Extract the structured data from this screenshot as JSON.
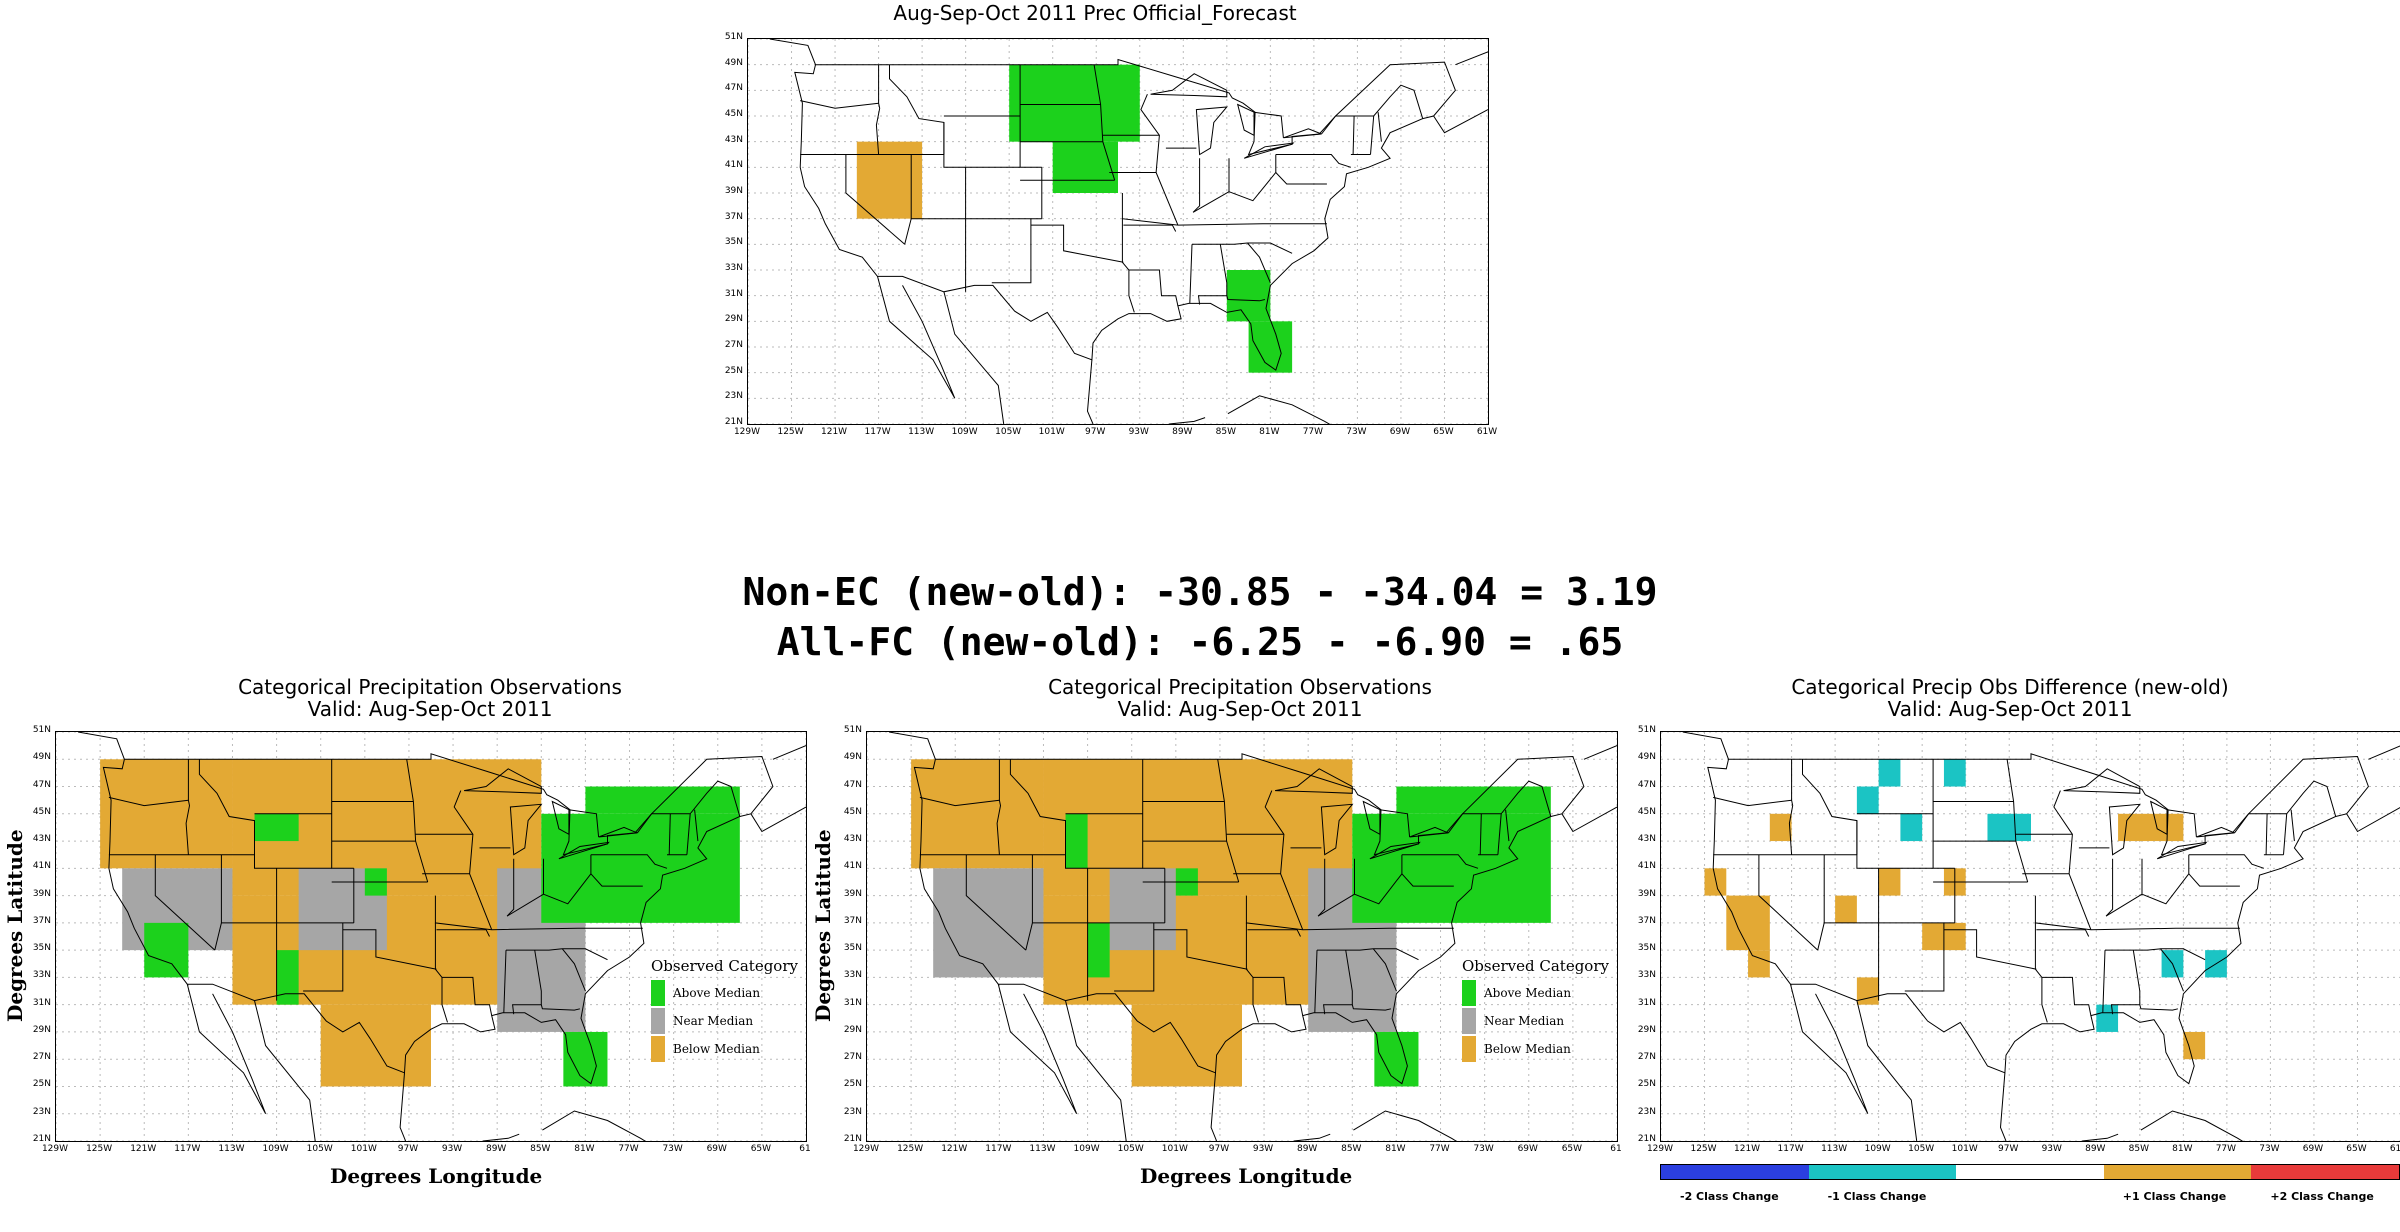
{
  "top_map": {
    "title": "Aug-Sep-Oct 2011 Prec Official_Forecast",
    "cells": [
      {
        "lon0": -119,
        "lat0": 37,
        "lon1": -113,
        "lat1": 43,
        "cat": "below"
      },
      {
        "lon0": -105,
        "lat0": 43,
        "lon1": -93,
        "lat1": 49,
        "cat": "above"
      },
      {
        "lon0": -101,
        "lat0": 39,
        "lon1": -95,
        "lat1": 43,
        "cat": "above"
      },
      {
        "lon0": -85,
        "lat0": 29,
        "lon1": -81,
        "lat1": 33,
        "cat": "above"
      },
      {
        "lon0": -83,
        "lat0": 25,
        "lon1": -79,
        "lat1": 29,
        "cat": "above"
      }
    ]
  },
  "stats": {
    "line1": "Non-EC (new-old): -30.85 - -34.04 = 3.19",
    "line2": "All-FC (new-old): -6.25 - -6.90 = .65"
  },
  "obs_map_1": {
    "title_line1": "Categorical Precipitation Observations",
    "title_line2": "Valid: Aug-Sep-Oct 2011",
    "cells": [
      {
        "lon0": -125,
        "lat0": 41,
        "lon1": -113,
        "lat1": 49,
        "cat": "below"
      },
      {
        "lon0": -123,
        "lat0": 35,
        "lon1": -113,
        "lat1": 41,
        "cat": "near"
      },
      {
        "lon0": -121,
        "lat0": 33,
        "lon1": -117,
        "lat1": 37,
        "cat": "above"
      },
      {
        "lon0": -113,
        "lat0": 31,
        "lon1": -83,
        "lat1": 39,
        "cat": "below"
      },
      {
        "lon0": -113,
        "lat0": 39,
        "lon1": -85,
        "lat1": 49,
        "cat": "below"
      },
      {
        "lon0": -107,
        "lat0": 35,
        "lon1": -99,
        "lat1": 41,
        "cat": "near"
      },
      {
        "lon0": -105,
        "lat0": 25,
        "lon1": -95,
        "lat1": 31,
        "cat": "below"
      },
      {
        "lon0": -89,
        "lat0": 29,
        "lon1": -81,
        "lat1": 41,
        "cat": "near"
      },
      {
        "lon0": -85,
        "lat0": 37,
        "lon1": -67,
        "lat1": 45,
        "cat": "above"
      },
      {
        "lon0": -81,
        "lat0": 45,
        "lon1": -67,
        "lat1": 47,
        "cat": "above"
      },
      {
        "lon0": -83,
        "lat0": 25,
        "lon1": -79,
        "lat1": 29,
        "cat": "above"
      },
      {
        "lon0": -111,
        "lat0": 43,
        "lon1": -107,
        "lat1": 45,
        "cat": "above"
      },
      {
        "lon0": -109,
        "lat0": 31,
        "lon1": -107,
        "lat1": 35,
        "cat": "above"
      },
      {
        "lon0": -101,
        "lat0": 39,
        "lon1": -99,
        "lat1": 41,
        "cat": "above"
      }
    ]
  },
  "obs_map_2": {
    "title_line1": "Categorical Precipitation Observations",
    "title_line2": "Valid: Aug-Sep-Oct 2011",
    "cells": [
      {
        "lon0": -125,
        "lat0": 41,
        "lon1": -113,
        "lat1": 49,
        "cat": "below"
      },
      {
        "lon0": -123,
        "lat0": 33,
        "lon1": -113,
        "lat1": 41,
        "cat": "near"
      },
      {
        "lon0": -113,
        "lat0": 31,
        "lon1": -83,
        "lat1": 39,
        "cat": "below"
      },
      {
        "lon0": -113,
        "lat0": 39,
        "lon1": -85,
        "lat1": 49,
        "cat": "below"
      },
      {
        "lon0": -107,
        "lat0": 35,
        "lon1": -101,
        "lat1": 41,
        "cat": "near"
      },
      {
        "lon0": -105,
        "lat0": 25,
        "lon1": -95,
        "lat1": 31,
        "cat": "below"
      },
      {
        "lon0": -89,
        "lat0": 29,
        "lon1": -81,
        "lat1": 41,
        "cat": "near"
      },
      {
        "lon0": -85,
        "lat0": 37,
        "lon1": -67,
        "lat1": 45,
        "cat": "above"
      },
      {
        "lon0": -81,
        "lat0": 45,
        "lon1": -67,
        "lat1": 47,
        "cat": "above"
      },
      {
        "lon0": -83,
        "lat0": 25,
        "lon1": -79,
        "lat1": 29,
        "cat": "above"
      },
      {
        "lon0": -111,
        "lat0": 41,
        "lon1": -109,
        "lat1": 45,
        "cat": "above"
      },
      {
        "lon0": -109,
        "lat0": 33,
        "lon1": -107,
        "lat1": 37,
        "cat": "above"
      },
      {
        "lon0": -101,
        "lat0": 39,
        "lon1": -99,
        "lat1": 41,
        "cat": "above"
      }
    ]
  },
  "obs_legend": {
    "title": "Observed Category",
    "items": [
      {
        "label": "Above Median",
        "color": "#1cd11c"
      },
      {
        "label": "Near Median",
        "color": "#a6a6a6"
      },
      {
        "label": "Below Median",
        "color": "#e3a934"
      }
    ]
  },
  "diff_map": {
    "title_line1": "Categorical Precip Obs Difference (new-old)",
    "title_line2": "Valid: Aug-Sep-Oct 2011",
    "cells": [
      {
        "lon0": -109,
        "lat0": 47,
        "lon1": -107,
        "lat1": 49,
        "cat": "minus1"
      },
      {
        "lon0": -103,
        "lat0": 47,
        "lon1": -101,
        "lat1": 49,
        "cat": "minus1"
      },
      {
        "lon0": -111,
        "lat0": 45,
        "lon1": -109,
        "lat1": 47,
        "cat": "minus1"
      },
      {
        "lon0": -107,
        "lat0": 43,
        "lon1": -105,
        "lat1": 45,
        "cat": "minus1"
      },
      {
        "lon0": -99,
        "lat0": 43,
        "lon1": -95,
        "lat1": 45,
        "cat": "minus1"
      },
      {
        "lon0": -119,
        "lat0": 43,
        "lon1": -117,
        "lat1": 45,
        "cat": "plus1"
      },
      {
        "lon0": -87,
        "lat0": 43,
        "lon1": -81,
        "lat1": 45,
        "cat": "plus1"
      },
      {
        "lon0": -125,
        "lat0": 39,
        "lon1": -123,
        "lat1": 41,
        "cat": "plus1"
      },
      {
        "lon0": -123,
        "lat0": 35,
        "lon1": -119,
        "lat1": 39,
        "cat": "plus1"
      },
      {
        "lon0": -121,
        "lat0": 33,
        "lon1": -119,
        "lat1": 35,
        "cat": "plus1"
      },
      {
        "lon0": -109,
        "lat0": 39,
        "lon1": -107,
        "lat1": 41,
        "cat": "plus1"
      },
      {
        "lon0": -113,
        "lat0": 37,
        "lon1": -111,
        "lat1": 39,
        "cat": "plus1"
      },
      {
        "lon0": -103,
        "lat0": 39,
        "lon1": -101,
        "lat1": 41,
        "cat": "plus1"
      },
      {
        "lon0": -105,
        "lat0": 35,
        "lon1": -101,
        "lat1": 37,
        "cat": "plus1"
      },
      {
        "lon0": -111,
        "lat0": 31,
        "lon1": -109,
        "lat1": 33,
        "cat": "plus1"
      },
      {
        "lon0": -83,
        "lat0": 33,
        "lon1": -81,
        "lat1": 35,
        "cat": "minus1"
      },
      {
        "lon0": -79,
        "lat0": 33,
        "lon1": -77,
        "lat1": 35,
        "cat": "minus1"
      },
      {
        "lon0": -89,
        "lat0": 29,
        "lon1": -87,
        "lat1": 31,
        "cat": "minus1"
      },
      {
        "lon0": -81,
        "lat0": 27,
        "lon1": -79,
        "lat1": 29,
        "cat": "plus1"
      }
    ]
  },
  "diff_legend": {
    "items": [
      {
        "label": "-2 Class Change",
        "color": "#2b3fe0"
      },
      {
        "label": "-1 Class Change",
        "color": "#1bc4c4"
      },
      {
        "label": "",
        "color": "#ffffff"
      },
      {
        "label": "+1 Class Change",
        "color": "#e3a934"
      },
      {
        "label": "+2 Class Change",
        "color": "#e83a3a"
      }
    ]
  },
  "axis": {
    "ylabel": "Degrees Latitude",
    "xlabel": "Degrees Longitude",
    "lat_ticks": [
      "21N",
      "23N",
      "25N",
      "27N",
      "29N",
      "31N",
      "33N",
      "35N",
      "37N",
      "39N",
      "41N",
      "43N",
      "45N",
      "47N",
      "49N",
      "51N"
    ],
    "lon_ticks": [
      "129W",
      "125W",
      "121W",
      "117W",
      "113W",
      "109W",
      "105W",
      "101W",
      "97W",
      "93W",
      "89W",
      "85W",
      "81W",
      "77W",
      "73W",
      "69W",
      "65W",
      "61W"
    ],
    "lon_ticks_obs": [
      "129W",
      "125W",
      "121W",
      "117W",
      "113W",
      "109W",
      "105W",
      "101W",
      "97W",
      "93W",
      "89W",
      "85W",
      "81W",
      "77W",
      "73W",
      "69W",
      "65W",
      "61"
    ]
  },
  "colors": {
    "above": "#1cd11c",
    "near": "#a6a6a6",
    "below": "#e3a934",
    "minus2": "#2b3fe0",
    "minus1": "#1bc4c4",
    "plus1": "#e3a934",
    "plus2": "#e83a3a"
  }
}
